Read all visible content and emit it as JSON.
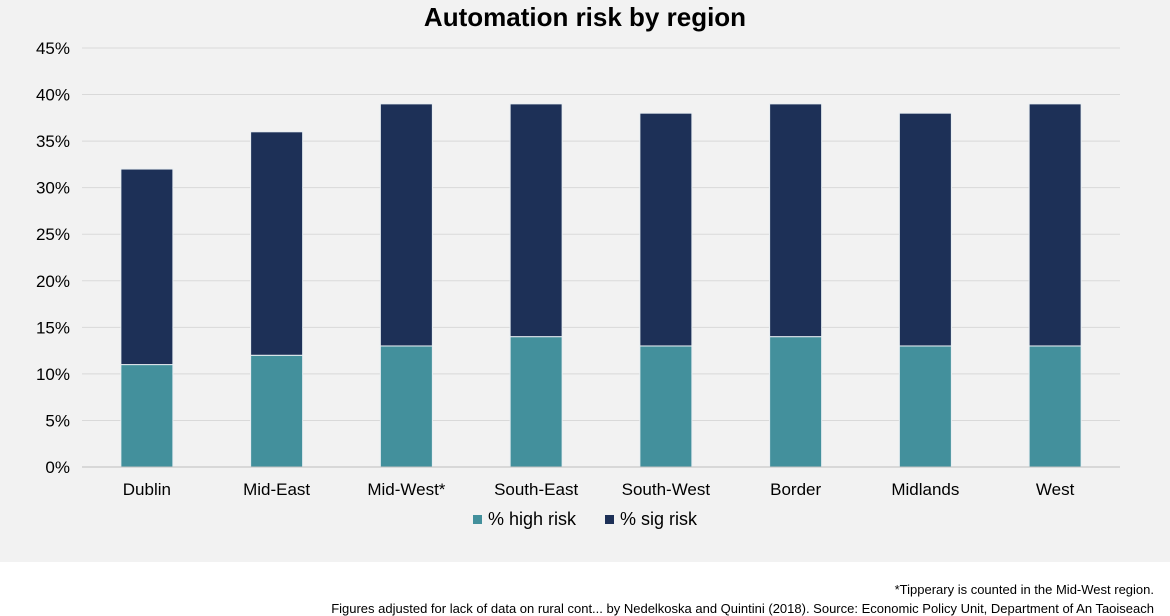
{
  "chart_data": {
    "type": "bar",
    "stacked": true,
    "title": "Automation risk by region",
    "categories": [
      "Dublin",
      "Mid-East",
      "Mid-West*",
      "South-East",
      "South-West",
      "Border",
      "Midlands",
      "West"
    ],
    "series": [
      {
        "name": "% high risk",
        "color": "#43909c",
        "values": [
          11,
          12,
          13,
          14,
          13,
          14,
          13,
          13
        ]
      },
      {
        "name": "% sig risk",
        "color": "#1d3057",
        "values": [
          21,
          24,
          26,
          25,
          25,
          25,
          25,
          26
        ]
      }
    ],
    "yticks": [
      "0%",
      "5%",
      "10%",
      "15%",
      "20%",
      "25%",
      "30%",
      "35%",
      "40%",
      "45%"
    ],
    "ylim": [
      0,
      45
    ],
    "grid": true,
    "legend_position": "bottom"
  },
  "footnote": "*Tipperary is counted in the Mid-West region.",
  "source_note": "Figures adjusted for lack of data on rural cont... by Nedelkoska and Quintini (2018). Source: Economic Policy Unit, Department of An Taoiseach"
}
